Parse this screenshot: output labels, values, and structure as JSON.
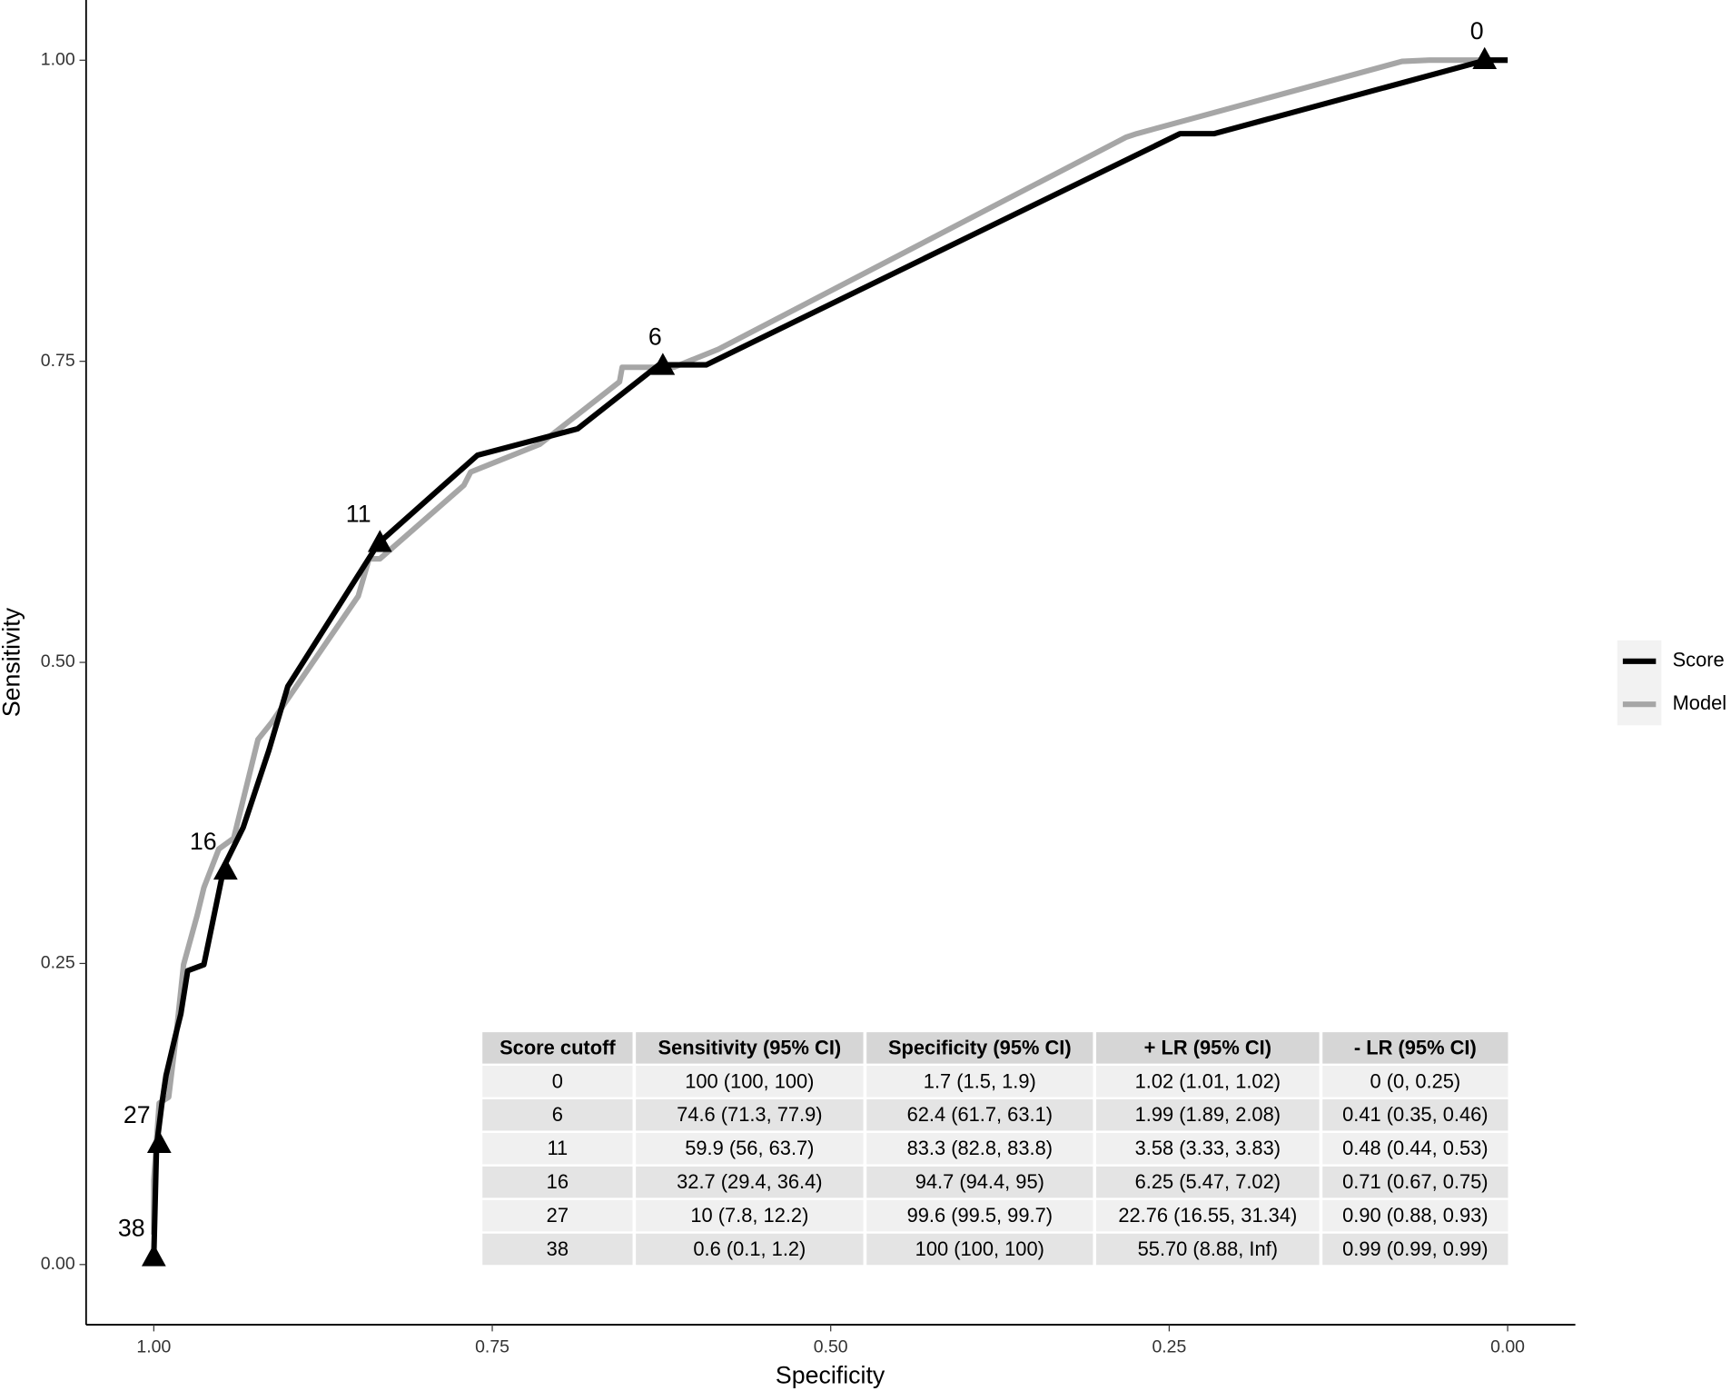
{
  "chart_data": {
    "type": "line",
    "x_label": "Specificity",
    "y_label": "Sensitivity",
    "xlim": [
      1.05,
      -0.05
    ],
    "ylim": [
      -0.05,
      1.05
    ],
    "xticks": [
      {
        "value": 1,
        "label": "1.00"
      },
      {
        "value": 0.75,
        "label": "0.75"
      },
      {
        "value": 0.5,
        "label": "0.50"
      },
      {
        "value": 0.25,
        "label": "0.25"
      },
      {
        "value": 0,
        "label": "0.00"
      }
    ],
    "yticks": [
      {
        "value": 0,
        "label": "0.00"
      },
      {
        "value": 0.25,
        "label": "0.25"
      },
      {
        "value": 0.5,
        "label": "0.50"
      },
      {
        "value": 0.75,
        "label": "0.75"
      },
      {
        "value": 1,
        "label": "1.00"
      }
    ],
    "series": [
      {
        "name": "Score",
        "color": "#000000",
        "x": [
          1.0,
          0.998,
          0.994,
          0.991,
          0.984,
          0.98,
          0.975,
          0.963,
          0.948,
          0.934,
          0.915,
          0.901,
          0.834,
          0.761,
          0.687,
          0.627,
          0.592,
          0.242,
          0.217,
          0.016,
          0.0
        ],
        "values": [
          0.006,
          0.098,
          0.134,
          0.157,
          0.19,
          0.208,
          0.244,
          0.249,
          0.331,
          0.363,
          0.427,
          0.48,
          0.599,
          0.672,
          0.694,
          0.747,
          0.747,
          0.939,
          0.939,
          1.0,
          1.0
        ]
      },
      {
        "name": "Model",
        "color": "#a6a6a6",
        "x": [
          1.0,
          1.0,
          0.996,
          0.989,
          0.984,
          0.978,
          0.968,
          0.963,
          0.952,
          0.941,
          0.923,
          0.913,
          0.849,
          0.841,
          0.833,
          0.771,
          0.766,
          0.715,
          0.656,
          0.654,
          0.616,
          0.583,
          0.282,
          0.274,
          0.078,
          0.058,
          0.0
        ],
        "values": [
          0.025,
          0.07,
          0.134,
          0.139,
          0.185,
          0.249,
          0.29,
          0.313,
          0.345,
          0.354,
          0.436,
          0.45,
          0.555,
          0.586,
          0.586,
          0.647,
          0.658,
          0.681,
          0.733,
          0.745,
          0.745,
          0.76,
          0.936,
          0.939,
          0.999,
          1.0,
          1.0
        ]
      }
    ],
    "points": {
      "x": [
        0.017,
        0.624,
        0.833,
        0.947,
        0.996,
        1.0
      ],
      "values": [
        1.0,
        0.746,
        0.599,
        0.327,
        0.1,
        0.006
      ],
      "labels": [
        "0",
        "6",
        "11",
        "16",
        "27",
        "38"
      ]
    },
    "table": {
      "header": [
        "Score cutoff",
        "Sensitivity (95% CI)",
        "Specificity (95% CI)",
        "+ LR (95% CI)",
        "- LR (95% CI)"
      ],
      "rows": [
        [
          "0",
          "100 (100, 100)",
          "1.7 (1.5, 1.9)",
          "1.02 (1.01, 1.02)",
          "0 (0, 0.25)"
        ],
        [
          "6",
          "74.6 (71.3, 77.9)",
          "62.4 (61.7, 63.1)",
          "1.99 (1.89, 2.08)",
          "0.41 (0.35, 0.46)"
        ],
        [
          "11",
          "59.9 (56, 63.7)",
          "83.3 (82.8, 83.8)",
          "3.58 (3.33, 3.83)",
          "0.48 (0.44, 0.53)"
        ],
        [
          "16",
          "32.7 (29.4, 36.4)",
          "94.7 (94.4, 95)",
          "6.25 (5.47, 7.02)",
          "0.71 (0.67, 0.75)"
        ],
        [
          "27",
          "10 (7.8, 12.2)",
          "99.6 (99.5, 99.7)",
          "22.76 (16.55, 31.34)",
          "0.90 (0.88, 0.93)"
        ],
        [
          "38",
          "0.6 (0.1, 1.2)",
          "100 (100, 100)",
          "55.70 (8.88, Inf)",
          "0.99 (0.99, 0.99)"
        ]
      ]
    }
  }
}
